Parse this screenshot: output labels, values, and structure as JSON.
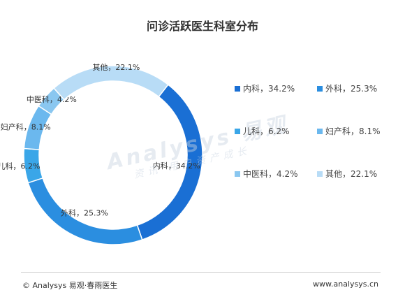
{
  "chart_data": {
    "type": "pie",
    "donut": true,
    "title": "问诊活跃医生科室分布",
    "slices": [
      {
        "label": "内科",
        "value": 34.2,
        "display": "34.2%",
        "color": "#1a6fd4"
      },
      {
        "label": "外科",
        "value": 25.3,
        "display": "25.3%",
        "color": "#2b8ee0"
      },
      {
        "label": "儿科",
        "value": 6.2,
        "display": "6.2%",
        "color": "#3aa6e8"
      },
      {
        "label": "妇产科",
        "value": 8.1,
        "display": "8.1%",
        "color": "#6bb8ee"
      },
      {
        "label": "中医科",
        "value": 4.2,
        "display": "4.2%",
        "color": "#8ac7f0"
      },
      {
        "label": "其他",
        "value": 22.1,
        "display": "22.1%",
        "color": "#b8dcf6"
      }
    ],
    "legend_position": "right"
  },
  "watermark": {
    "main": "Analysys 易观",
    "sub": "资讯 用户资产成长"
  },
  "footer": {
    "left": "© Analysys 易观·春雨医生",
    "right": "www.analysys.cn"
  }
}
